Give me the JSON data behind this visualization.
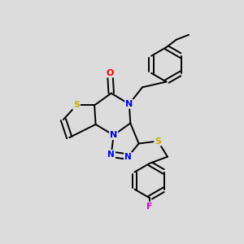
{
  "bg_color": "#dcdcdc",
  "bond_color": "#000000",
  "atom_colors": {
    "S": "#ccaa00",
    "N": "#0000ee",
    "O": "#ee0000",
    "F": "#cc00cc",
    "C": "#000000"
  },
  "bond_width": 1.4,
  "lw": 1.4
}
